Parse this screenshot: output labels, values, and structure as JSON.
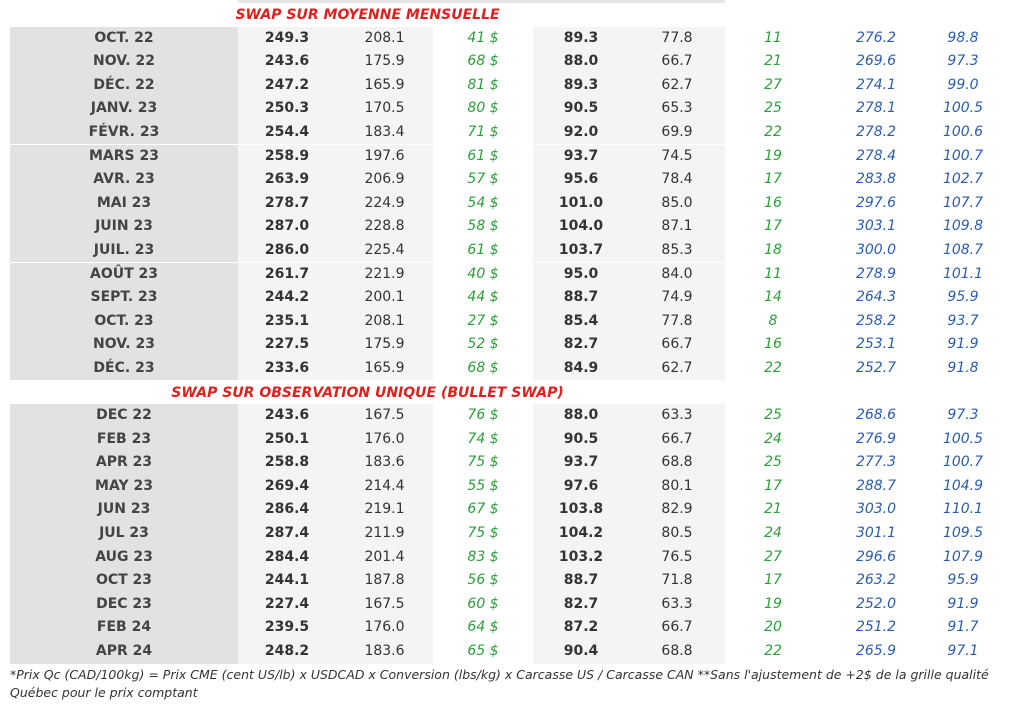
{
  "sections": [
    {
      "title": "SWAP SUR MOYENNE MENSUELLE",
      "rows": [
        [
          "OCT. 22",
          "249.3",
          "208.1",
          "41 $",
          "89.3",
          "77.8",
          "11",
          "276.2",
          "98.8"
        ],
        [
          "NOV. 22",
          "243.6",
          "175.9",
          "68 $",
          "88.0",
          "66.7",
          "21",
          "269.6",
          "97.3"
        ],
        [
          "DÉC. 22",
          "247.2",
          "165.9",
          "81 $",
          "89.3",
          "62.7",
          "27",
          "274.1",
          "99.0"
        ],
        [
          "JANV. 23",
          "250.3",
          "170.5",
          "80 $",
          "90.5",
          "65.3",
          "25",
          "278.1",
          "100.5"
        ],
        [
          "FÉVR. 23",
          "254.4",
          "183.4",
          "71 $",
          "92.0",
          "69.9",
          "22",
          "278.2",
          "100.6"
        ],
        [
          "MARS 23",
          "258.9",
          "197.6",
          "61 $",
          "93.7",
          "74.5",
          "19",
          "278.4",
          "100.7"
        ],
        [
          "AVR. 23",
          "263.9",
          "206.9",
          "57 $",
          "95.6",
          "78.4",
          "17",
          "283.8",
          "102.7"
        ],
        [
          "MAI 23",
          "278.7",
          "224.9",
          "54 $",
          "101.0",
          "85.0",
          "16",
          "297.6",
          "107.7"
        ],
        [
          "JUIN 23",
          "287.0",
          "228.8",
          "58 $",
          "104.0",
          "87.1",
          "17",
          "303.1",
          "109.8"
        ],
        [
          "JUIL. 23",
          "286.0",
          "225.4",
          "61 $",
          "103.7",
          "85.3",
          "18",
          "300.0",
          "108.7"
        ],
        [
          "AOÛT 23",
          "261.7",
          "221.9",
          "40 $",
          "95.0",
          "84.0",
          "11",
          "278.9",
          "101.1"
        ],
        [
          "SEPT. 23",
          "244.2",
          "200.1",
          "44 $",
          "88.7",
          "74.9",
          "14",
          "264.3",
          "95.9"
        ],
        [
          "OCT. 23",
          "235.1",
          "208.1",
          "27 $",
          "85.4",
          "77.8",
          "8",
          "258.2",
          "93.7"
        ],
        [
          "NOV. 23",
          "227.5",
          "175.9",
          "52 $",
          "82.7",
          "66.7",
          "16",
          "253.1",
          "91.9"
        ],
        [
          "DÉC. 23",
          "233.6",
          "165.9",
          "68 $",
          "84.9",
          "62.7",
          "22",
          "252.7",
          "91.8"
        ]
      ]
    },
    {
      "title": "SWAP SUR OBSERVATION UNIQUE (BULLET SWAP)",
      "rows": [
        [
          "DEC 22",
          "243.6",
          "167.5",
          "76 $",
          "88.0",
          "63.3",
          "25",
          "268.6",
          "97.3"
        ],
        [
          "FEB 23",
          "250.1",
          "176.0",
          "74 $",
          "90.5",
          "66.7",
          "24",
          "276.9",
          "100.5"
        ],
        [
          "APR 23",
          "258.8",
          "183.6",
          "75 $",
          "93.7",
          "68.8",
          "25",
          "277.3",
          "100.7"
        ],
        [
          "MAY 23",
          "269.4",
          "214.4",
          "55 $",
          "97.6",
          "80.1",
          "17",
          "288.7",
          "104.9"
        ],
        [
          "JUN 23",
          "286.4",
          "219.1",
          "67 $",
          "103.8",
          "82.9",
          "21",
          "303.0",
          "110.1"
        ],
        [
          "JUL 23",
          "287.4",
          "211.9",
          "75 $",
          "104.2",
          "80.5",
          "24",
          "301.1",
          "109.5"
        ],
        [
          "AUG 23",
          "284.4",
          "201.4",
          "83 $",
          "103.2",
          "76.5",
          "27",
          "296.6",
          "107.9"
        ],
        [
          "OCT 23",
          "244.1",
          "187.8",
          "56 $",
          "88.7",
          "71.8",
          "17",
          "263.2",
          "95.9"
        ],
        [
          "DEC 23",
          "227.4",
          "167.5",
          "60 $",
          "82.7",
          "63.3",
          "19",
          "252.0",
          "91.9"
        ],
        [
          "FEB 24",
          "239.5",
          "176.0",
          "64 $",
          "87.2",
          "66.7",
          "20",
          "251.2",
          "91.7"
        ],
        [
          "APR 24",
          "248.2",
          "183.6",
          "65 $",
          "90.4",
          "68.8",
          "22",
          "265.9",
          "97.1"
        ]
      ]
    }
  ],
  "footnote": "*Prix Qc (CAD/100kg) = Prix CME (cent US/lb) x USDCAD x Conversion (lbs/kg) x Carcasse US / Carcasse CAN **Sans l'ajustement de +2$ de la grille qualité Québec pour le prix comptant"
}
